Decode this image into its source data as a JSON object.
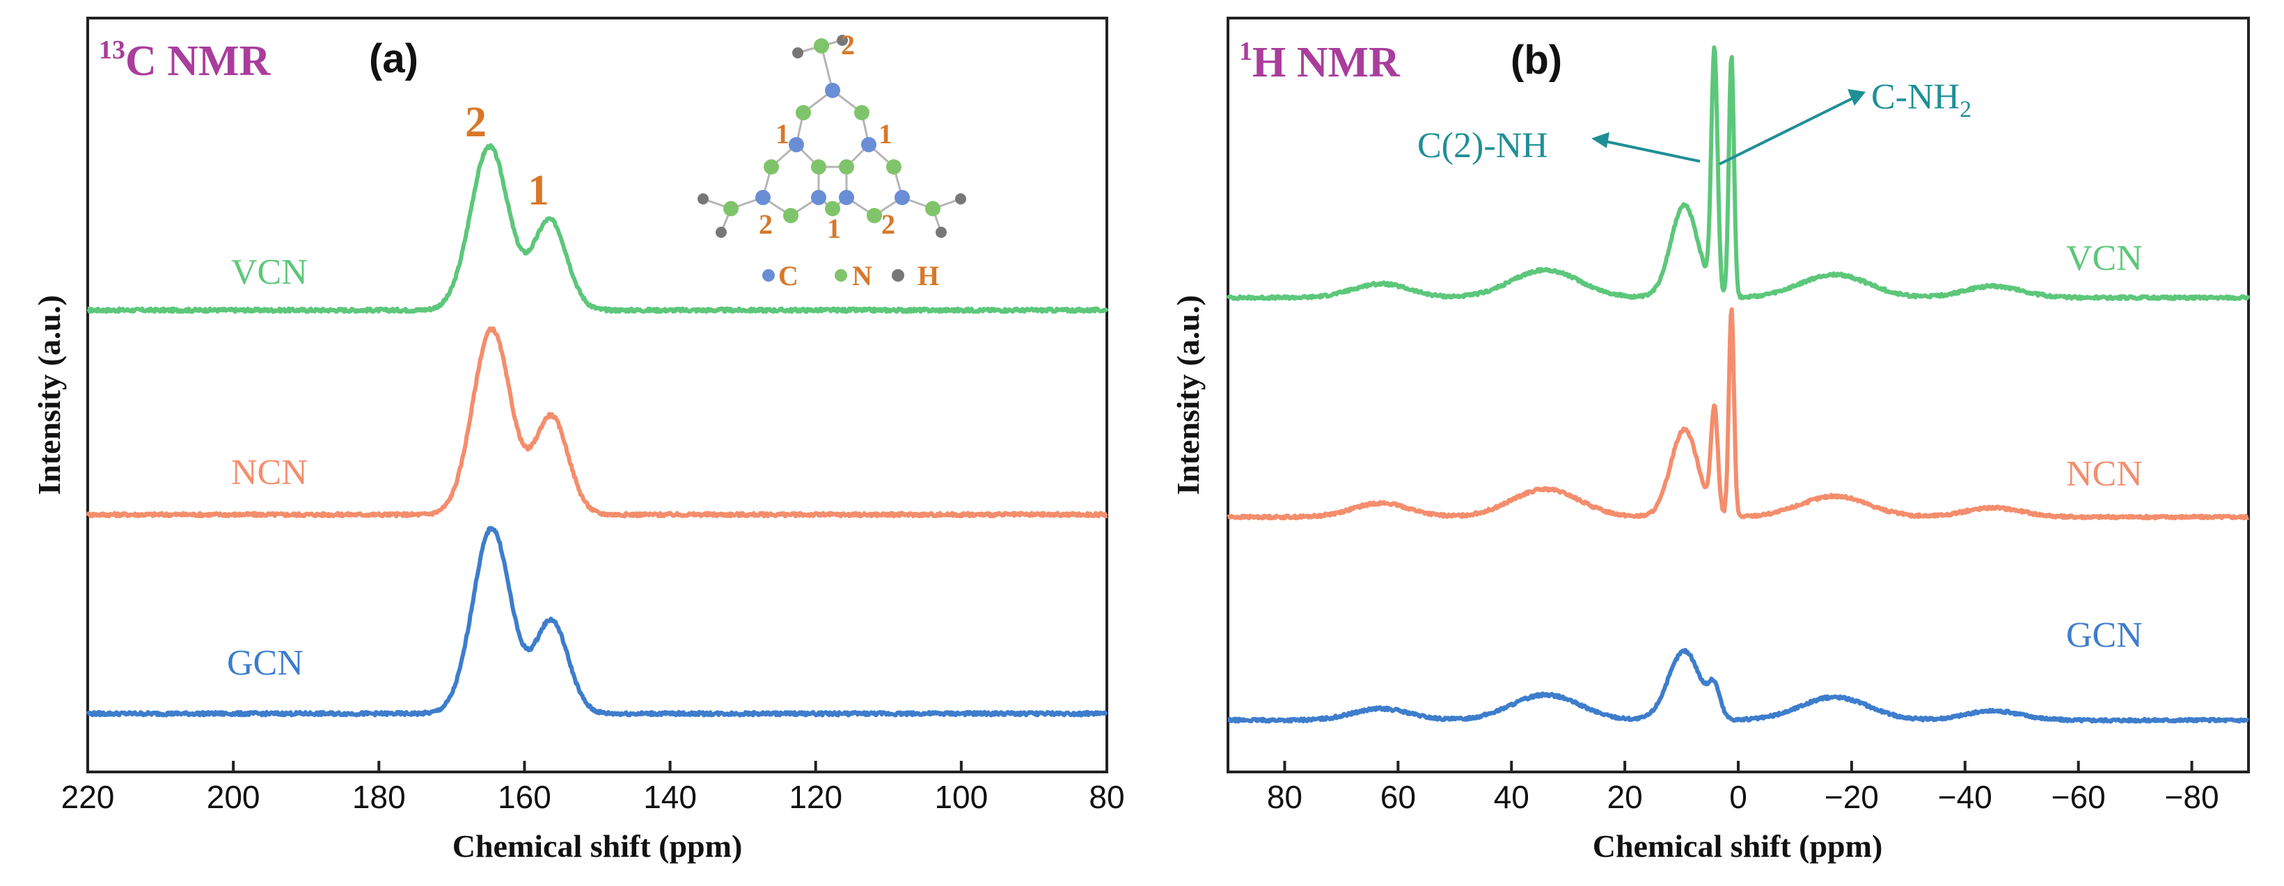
{
  "chart_data": [
    {
      "type": "line",
      "panel_letter": "(a)",
      "title_super": "13",
      "title_main": "C NMR",
      "xlabel": "Chemical shift (ppm)",
      "ylabel": "Intensity (a.u.)",
      "xlim": [
        220,
        80
      ],
      "x_reversed": true,
      "xticks": [
        "220",
        "200",
        "180",
        "160",
        "140",
        "120",
        "100",
        "80"
      ],
      "tick_values": [
        220,
        200,
        180,
        160,
        140,
        120,
        100,
        80
      ],
      "grid": false,
      "series": [
        {
          "name": "VCN",
          "color": "#5cc77a",
          "baseline": 0.0,
          "peaks": [
            {
              "x": 164.8,
              "height": 0.6,
              "width": 2.6
            },
            {
              "x": 156.5,
              "height": 0.33,
              "width": 2.3
            }
          ]
        },
        {
          "name": "NCN",
          "color": "#f48d6c",
          "baseline": -0.75,
          "peaks": [
            {
              "x": 164.5,
              "height": 0.68,
              "width": 2.6
            },
            {
              "x": 156.3,
              "height": 0.36,
              "width": 2.3
            }
          ]
        },
        {
          "name": "GCN",
          "color": "#3d7dcc",
          "baseline": -1.48,
          "peaks": [
            {
              "x": 164.5,
              "height": 0.68,
              "width": 2.6
            },
            {
              "x": 156.3,
              "height": 0.34,
              "width": 2.3
            }
          ]
        }
      ],
      "peak_labels": [
        {
          "text": "2",
          "x": 164.8
        },
        {
          "text": "1",
          "x": 156.5
        }
      ],
      "inset": {
        "site_labels": [
          "2",
          "1",
          "1",
          "2",
          "1",
          "2"
        ],
        "legend": [
          {
            "symbol_color": "#6a8ed6",
            "label": "C"
          },
          {
            "symbol_color": "#7fc46a",
            "label": "N"
          },
          {
            "symbol_color": "#777777",
            "label": "H"
          }
        ]
      }
    },
    {
      "type": "line",
      "panel_letter": "(b)",
      "title_super": "1",
      "title_main": "H NMR",
      "xlabel": "Chemical shift (ppm)",
      "ylabel": "Intensity (a.u.)",
      "xlim": [
        90,
        -90
      ],
      "x_reversed": true,
      "xticks": [
        "80",
        "60",
        "40",
        "20",
        "0",
        "−20",
        "−40",
        "−60",
        "−80"
      ],
      "tick_values": [
        80,
        60,
        40,
        20,
        0,
        -20,
        -40,
        -60,
        -80
      ],
      "grid": false,
      "series": [
        {
          "name": "VCN",
          "color": "#5cc77a",
          "baseline": 0.0,
          "peaks": [
            {
              "x": 63,
              "height": 0.06,
              "width": 5
            },
            {
              "x": 34,
              "height": 0.12,
              "width": 6
            },
            {
              "x": 9.5,
              "height": 0.4,
              "width": 2.4
            },
            {
              "x": 4.2,
              "height": 1.05,
              "width": 0.55
            },
            {
              "x": 1.2,
              "height": 1.05,
              "width": 0.45
            },
            {
              "x": -17,
              "height": 0.1,
              "width": 6
            },
            {
              "x": -45,
              "height": 0.05,
              "width": 5
            }
          ]
        },
        {
          "name": "NCN",
          "color": "#f48d6c",
          "baseline": -0.95,
          "peaks": [
            {
              "x": 63,
              "height": 0.06,
              "width": 5
            },
            {
              "x": 34,
              "height": 0.12,
              "width": 6
            },
            {
              "x": 9.5,
              "height": 0.38,
              "width": 2.4
            },
            {
              "x": 4.2,
              "height": 0.45,
              "width": 0.6
            },
            {
              "x": 1.2,
              "height": 0.9,
              "width": 0.45
            },
            {
              "x": -17,
              "height": 0.09,
              "width": 6
            },
            {
              "x": -45,
              "height": 0.04,
              "width": 5
            }
          ]
        },
        {
          "name": "GCN",
          "color": "#3d7dcc",
          "baseline": -1.83,
          "peaks": [
            {
              "x": 63,
              "height": 0.05,
              "width": 5
            },
            {
              "x": 34,
              "height": 0.11,
              "width": 6
            },
            {
              "x": 9.5,
              "height": 0.3,
              "width": 2.8
            },
            {
              "x": 4.2,
              "height": 0.12,
              "width": 1.0
            },
            {
              "x": -17,
              "height": 0.1,
              "width": 6
            },
            {
              "x": -45,
              "height": 0.04,
              "width": 5
            }
          ]
        }
      ],
      "annotations": [
        {
          "text": "C(2)-NH",
          "x": 4.2
        },
        {
          "text": "C-NH",
          "subscript": "2",
          "x": 1.2
        }
      ]
    }
  ]
}
